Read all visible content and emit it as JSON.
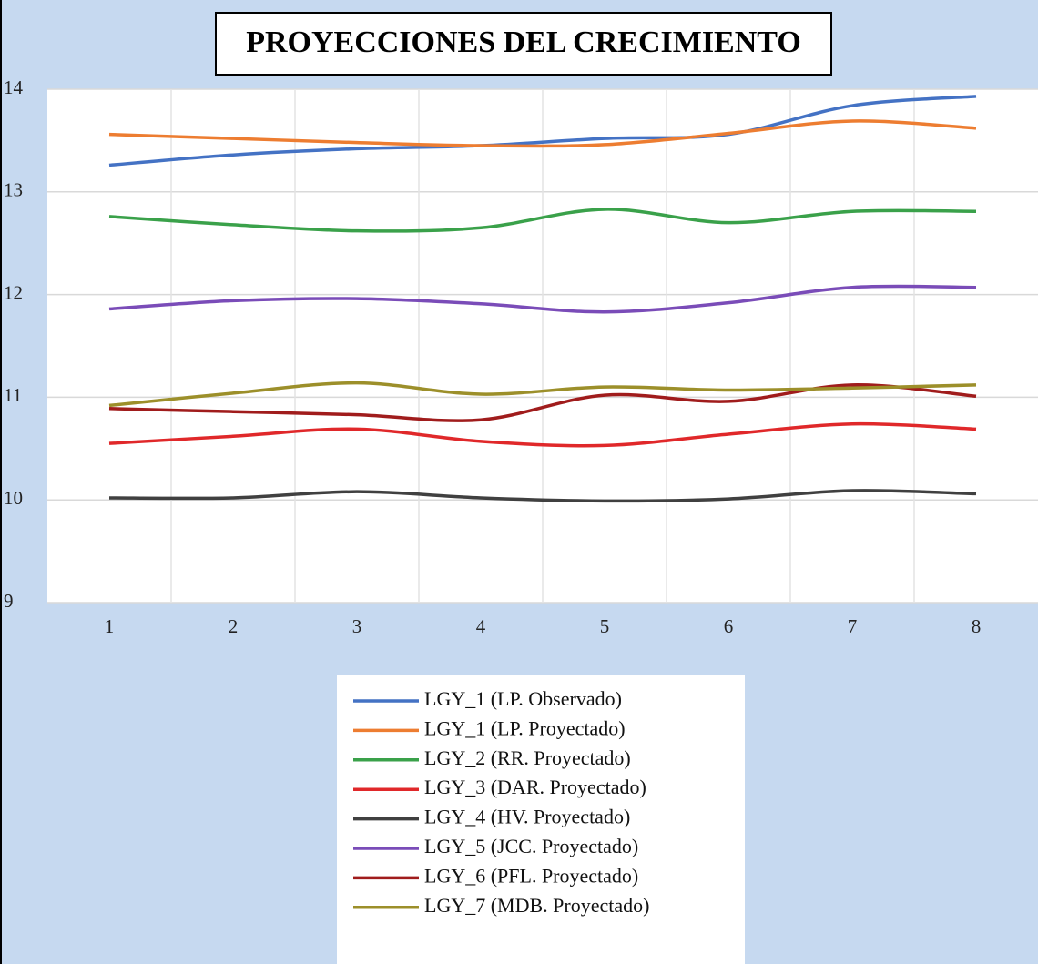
{
  "chart_data": {
    "type": "line",
    "title": "PROYECCIONES DEL CRECIMIENTO",
    "categories": [
      "1",
      "2",
      "3",
      "4",
      "5",
      "6",
      "7",
      "8"
    ],
    "series": [
      {
        "name": "LGY_1 (LP. Observado)",
        "color": "#4472c4",
        "values": [
          13.26,
          13.36,
          13.42,
          13.45,
          13.52,
          13.56,
          13.84,
          13.93
        ]
      },
      {
        "name": "LGY_1 (LP. Proyectado)",
        "color": "#ed7d31",
        "values": [
          13.56,
          13.52,
          13.48,
          13.45,
          13.46,
          13.57,
          13.69,
          13.62
        ]
      },
      {
        "name": "LGY_2 (RR. Proyectado)",
        "color": "#3aa14a",
        "values": [
          12.76,
          12.68,
          12.62,
          12.65,
          12.83,
          12.7,
          12.81,
          12.81
        ]
      },
      {
        "name": "LGY_3 (DAR. Proyectado)",
        "color": "#e0282a",
        "values": [
          10.55,
          10.62,
          10.69,
          10.57,
          10.53,
          10.64,
          10.74,
          10.69
        ]
      },
      {
        "name": "LGY_4 (HV. Proyectado)",
        "color": "#404040",
        "values": [
          10.02,
          10.02,
          10.08,
          10.02,
          9.99,
          10.01,
          10.09,
          10.06
        ]
      },
      {
        "name": "LGY_5 (JCC. Proyectado)",
        "color": "#7a4cb8",
        "values": [
          11.86,
          11.94,
          11.96,
          11.91,
          11.83,
          11.92,
          12.07,
          12.07
        ]
      },
      {
        "name": "LGY_6 (PFL. Proyectado)",
        "color": "#a01c1c",
        "values": [
          10.89,
          10.86,
          10.83,
          10.78,
          11.02,
          10.96,
          11.12,
          11.01
        ]
      },
      {
        "name": "LGY_7 (MDB. Proyectado)",
        "color": "#9c8f2a",
        "values": [
          10.92,
          11.04,
          11.14,
          11.03,
          11.1,
          11.07,
          11.09,
          11.12
        ]
      }
    ],
    "ylim": [
      9,
      14
    ],
    "yticks": [
      9,
      10,
      11,
      12,
      13,
      14
    ],
    "grid": true,
    "legend": "bottom"
  }
}
